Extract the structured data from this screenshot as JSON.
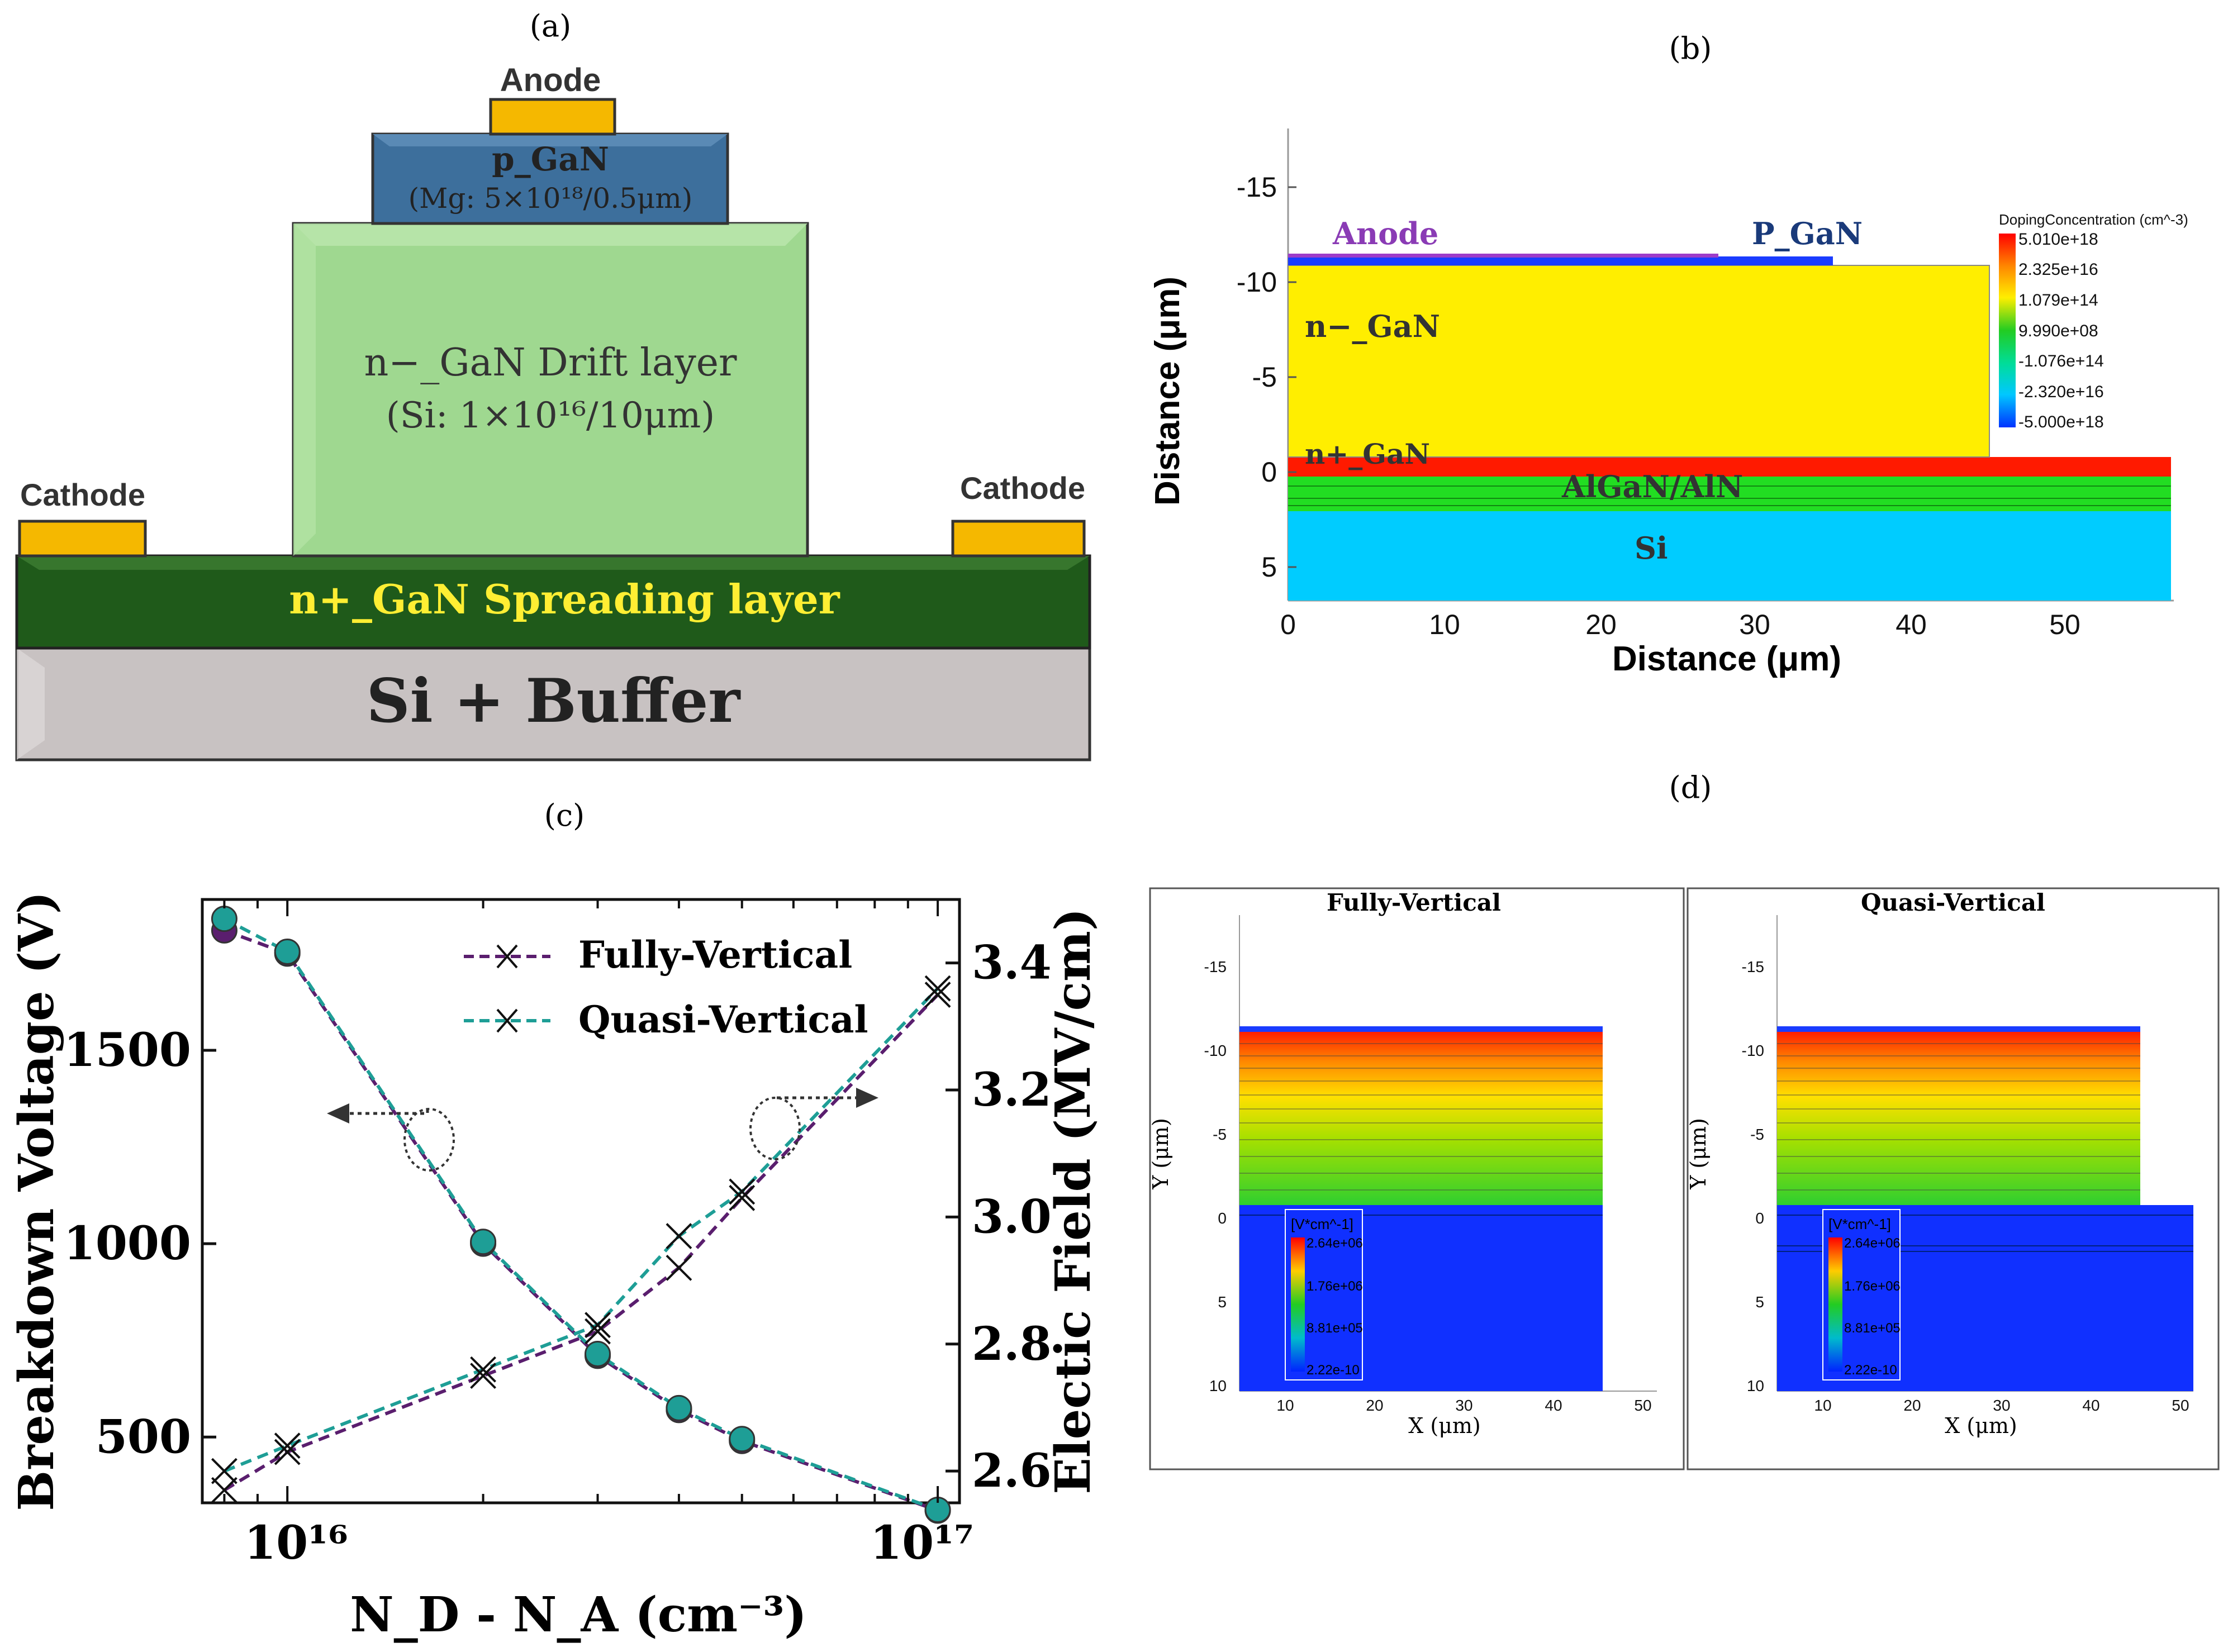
{
  "panels": {
    "a": {
      "label": "(a)",
      "anode": "Anode",
      "pgan_title": "p_GaN",
      "pgan_doping": "(Mg: 5×10¹⁸/0.5μm)",
      "drift_title": "n−_GaN Drift layer",
      "drift_doping": "(Si: 1×10¹⁶/10μm)",
      "cathode_left": "Cathode",
      "cathode_right": "Cathode",
      "spreading": "n+_GaN Spreading layer",
      "substrate": "Si + Buffer",
      "colors": {
        "contact": "#f5b800",
        "pgan": "#3d6f9c",
        "drift": "#9fd890",
        "spreading": "#1f5a1a",
        "substrate": "#c8c2c2"
      }
    },
    "b": {
      "label": "(b)",
      "ylabel": "Distance (μm)",
      "xlabel": "Distance (μm)",
      "yticks": [
        "-15",
        "-10",
        "-5",
        "0",
        "5"
      ],
      "xticks": [
        "0",
        "10",
        "20",
        "30",
        "40",
        "50"
      ],
      "regions": {
        "anode": "Anode",
        "pgan": "P_GaN",
        "nminus": "n−_GaN",
        "nplus": "n+_GaN",
        "algan": "AlGaN/AlN",
        "si": "Si"
      },
      "legend_title": "DopingConcentration (cm^-3)",
      "legend_values": [
        "5.010e+18",
        "2.325e+16",
        "1.079e+14",
        "9.990e+08",
        "-1.076e+14",
        "-2.320e+16",
        "-5.000e+18"
      ]
    },
    "c": {
      "label": "(c)",
      "ylabel_left": "Breakdown Voltage (V)",
      "ylabel_right": "Electic Field (MV/cm)",
      "xlabel": "N_D - N_A (cm⁻³)",
      "x_tick_labels": [
        "10¹⁶",
        "10¹⁷"
      ],
      "legend": [
        "Fully-Vertical",
        "Quasi-Vertical"
      ]
    },
    "d": {
      "label": "(d)",
      "left_title": "Fully-Vertical",
      "right_title": "Quasi-Vertical",
      "ylabel": "Y (μm)",
      "xlabel": "X (μm)",
      "yticks": [
        "-15",
        "-10",
        "-5",
        "0",
        "5",
        "10"
      ],
      "xticks": [
        "10",
        "20",
        "30",
        "40",
        "50"
      ],
      "legend_title": "[V*cm^-1]",
      "legend_values": [
        "2.64e+06",
        "1.76e+06",
        "8.81e+05",
        "2.22e-10"
      ]
    }
  },
  "chart_data": {
    "type": "line",
    "xscale": "log",
    "x": [
      8000000000000000.0,
      1e+16,
      2e+16,
      3e+16,
      4e+16,
      5e+16,
      1e+17
    ],
    "xlim": [
      7400000000000000.0,
      1.08e+17
    ],
    "ylim_left": [
      330,
      1890
    ],
    "ylim_right": [
      2.55,
      3.5
    ],
    "yticks_left": [
      500,
      1000,
      1500
    ],
    "yticks_right": [
      2.6,
      2.8,
      3.0,
      3.2,
      3.4
    ],
    "legend_position": "top-right",
    "series": [
      {
        "name": "Fully-Vertical",
        "axis": "left",
        "marker": "circle",
        "color": "#5a1e6e",
        "values": [
          1810,
          1750,
          1000,
          710,
          570,
          490,
          310
        ]
      },
      {
        "name": "Quasi-Vertical",
        "axis": "left",
        "marker": "circle",
        "color": "#1e9e96",
        "values": [
          1840,
          1755,
          1005,
          715,
          575,
          495,
          312
        ]
      },
      {
        "name": "Fully-Vertical",
        "axis": "right",
        "marker": "x",
        "color": "#5a1e6e",
        "values": [
          2.57,
          2.63,
          2.75,
          2.82,
          2.92,
          3.03,
          3.35
        ]
      },
      {
        "name": "Quasi-Vertical",
        "axis": "right",
        "marker": "x",
        "color": "#1e9e96",
        "values": [
          2.6,
          2.64,
          2.76,
          2.83,
          2.97,
          3.04,
          3.36
        ]
      }
    ]
  }
}
